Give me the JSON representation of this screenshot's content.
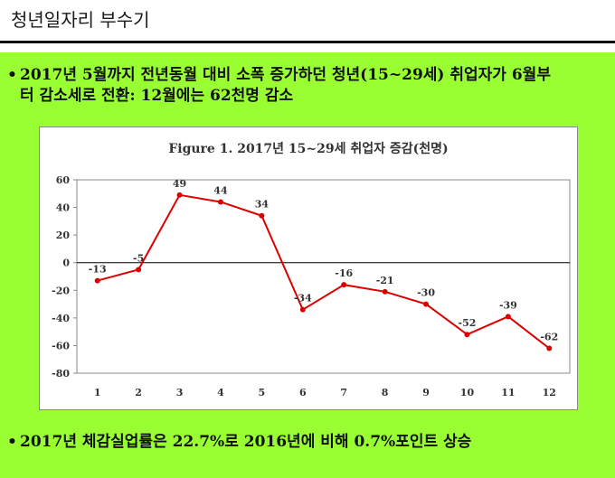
{
  "page": {
    "title": "청년일자리 부수기",
    "bullet1_line1": "2017년 5월까지 전년동월 대비 소폭 증가하던 청년(15~29세) 취업자가 6월부",
    "bullet1_line2": "터 감소세로 전환: 12월에는 62천명 감소",
    "bullet2": "2017년 체감실업률은 22.7%로 2016년에 비해 0.7%포인트 상승",
    "bullet_mark": "•"
  },
  "colors": {
    "panel": "#99ff33",
    "line": "#dd0000"
  },
  "chart_data": {
    "type": "line",
    "title": "Figure 1. 2017년 15~29세 취업자 증감(천명)",
    "xlabel": "",
    "ylabel": "",
    "categories": [
      "1",
      "2",
      "3",
      "4",
      "5",
      "6",
      "7",
      "8",
      "9",
      "10",
      "11",
      "12"
    ],
    "values": [
      -13,
      -5,
      49,
      44,
      34,
      -34,
      -16,
      -21,
      -30,
      -52,
      -39,
      -62
    ],
    "data_labels": [
      "-13",
      "-5",
      "49",
      "44",
      "34",
      "-34",
      "-16",
      "-21",
      "-30",
      "-52",
      "-39",
      "-62"
    ],
    "ylim": [
      -80,
      60
    ],
    "yticks": [
      60,
      40,
      20,
      0,
      -20,
      -40,
      -60,
      -80
    ],
    "grid": false
  }
}
